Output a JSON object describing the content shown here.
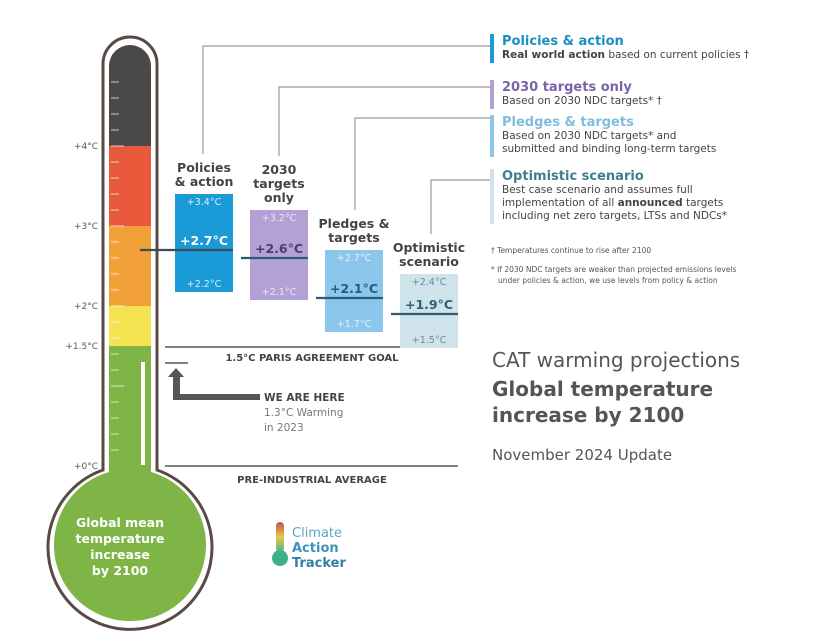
{
  "colors": {
    "policies": "#1a9ad6",
    "targets2030": "#b3a0d4",
    "pledges": "#8cc6ea",
    "optimistic": "#cfe3ea",
    "thermo_gray": "#4b4848",
    "thermo_red": "#e85a3b",
    "thermo_orange": "#f2a13a",
    "thermo_yellow": "#f4e250",
    "thermo_green": "#7fb446"
  },
  "chart_data": {
    "type": "range-bar",
    "title": "CAT warming projections",
    "subtitle": "Global temperature increase by 2100",
    "update": "November 2024 Update",
    "ylabel": "Global mean temperature increase by 2100",
    "ylim": [
      0,
      5
    ],
    "yticks": [
      {
        "value": 0,
        "label": "+0°C"
      },
      {
        "value": 1.5,
        "label": "+1.5°C"
      },
      {
        "value": 2,
        "label": "+2°C"
      },
      {
        "value": 3,
        "label": "+3°C"
      },
      {
        "value": 4,
        "label": "+4°C"
      }
    ],
    "series": [
      {
        "key": "policies",
        "name": "Policies & action",
        "label_lines": [
          "Policies",
          "& action"
        ],
        "low": 2.2,
        "median": 2.7,
        "high": 3.4,
        "low_label": "+2.2°C",
        "median_label": "+2.7°C",
        "high_label": "+3.4°C"
      },
      {
        "key": "targets2030",
        "name": "2030 targets only",
        "label_lines": [
          "2030",
          "targets",
          "only"
        ],
        "low": 2.1,
        "median": 2.6,
        "high": 3.2,
        "low_label": "+2.1°C",
        "median_label": "+2.6°C",
        "high_label": "+3.2°C"
      },
      {
        "key": "pledges",
        "name": "Pledges & targets",
        "label_lines": [
          "Pledges &",
          "targets"
        ],
        "low": 1.7,
        "median": 2.1,
        "high": 2.7,
        "low_label": "+1.7°C",
        "median_label": "+2.1°C",
        "high_label": "+2.7°C"
      },
      {
        "key": "optimistic",
        "name": "Optimistic scenario",
        "label_lines": [
          "Optimistic",
          "scenario"
        ],
        "low": 1.5,
        "median": 1.9,
        "high": 2.4,
        "low_label": "+1.5°C",
        "median_label": "+1.9°C",
        "high_label": "+2.4°C"
      }
    ],
    "reference_lines": [
      {
        "value": 1.5,
        "label": "1.5°C PARIS AGREEMENT GOAL"
      },
      {
        "value": 0,
        "label": "PRE-INDUSTRIAL AVERAGE"
      }
    ],
    "current": {
      "value": 1.3,
      "label": "WE ARE HERE",
      "detail_lines": [
        "1.3°C Warming",
        "in 2023"
      ]
    }
  },
  "thermometer": {
    "bulb_lines": [
      "Global mean",
      "temperature",
      "increase",
      "by 2100"
    ]
  },
  "legend": [
    {
      "title": "Policies & action",
      "desc_lines": [
        [
          "Real world action",
          " based on current policies †"
        ]
      ]
    },
    {
      "title": "2030 targets only",
      "desc_lines": [
        [
          "",
          "Based on 2030 NDC targets* †"
        ]
      ]
    },
    {
      "title": "Pledges & targets",
      "desc_lines": [
        [
          "",
          "Based on 2030 NDC targets* and"
        ],
        [
          "",
          "submitted and binding long-term targets"
        ]
      ]
    },
    {
      "title": "Optimistic scenario",
      "desc_lines": [
        [
          "",
          "Best case scenario and assumes full"
        ],
        [
          "",
          "implementation of all "
        ],
        [
          "",
          "including net zero targets, LTSs and NDCs*"
        ]
      ],
      "bold_word": "announced",
      "after_bold": " targets"
    }
  ],
  "notes": [
    {
      "lines": [
        "† Temperatures continue to rise after 2100"
      ]
    },
    {
      "lines": [
        "* If 2030 NDC targets are weaker than projected emissions levels",
        "under policies & action, we use levels from policy & action"
      ]
    }
  ],
  "logo": {
    "lines": [
      "Climate",
      "Action",
      "Tracker"
    ]
  }
}
